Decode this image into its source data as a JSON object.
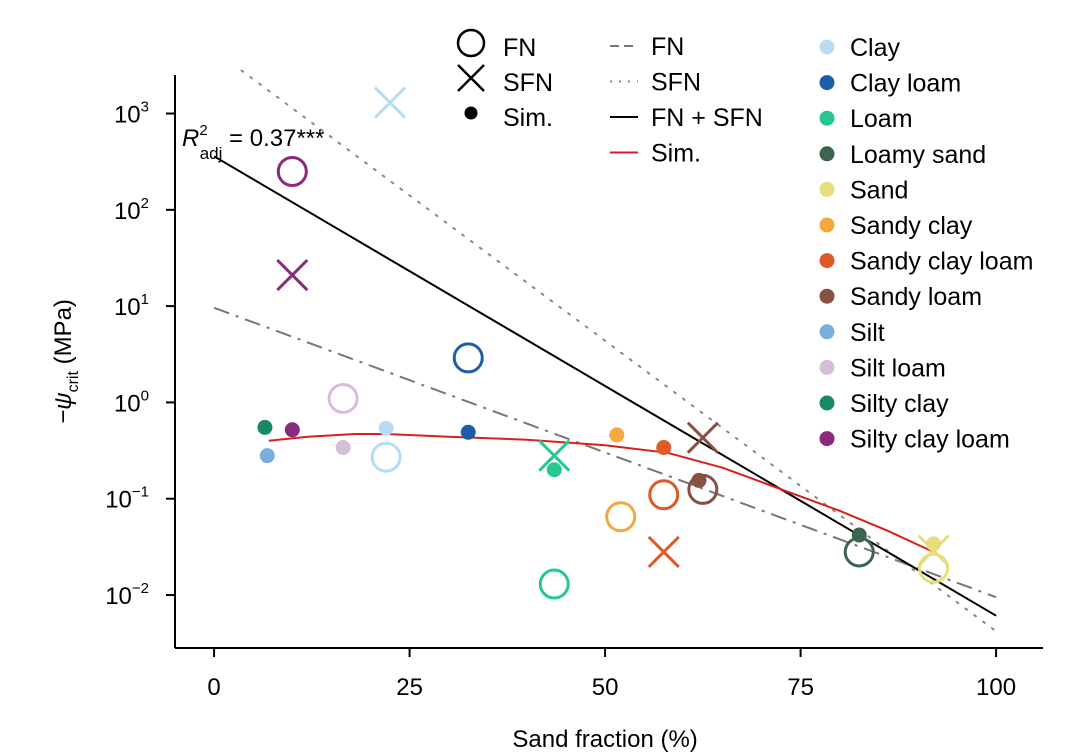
{
  "chart_data": {
    "type": "scatter",
    "xlabel": "Sand fraction (%)",
    "ylabel": {
      "main": "−ψ",
      "sub": "crit",
      "unit": "(MPa)"
    },
    "x": {
      "range": [
        -5,
        106
      ],
      "ticks": [
        0,
        25,
        50,
        75,
        100
      ]
    },
    "y": {
      "scale": "log",
      "range_exponent": [
        -2.55,
        3.4
      ],
      "ticks": [
        {
          "exp": 3,
          "base": "10",
          "sup": "3"
        },
        {
          "exp": 2,
          "base": "10",
          "sup": "2"
        },
        {
          "exp": 1,
          "base": "10",
          "sup": "1"
        },
        {
          "exp": 0,
          "base": "10",
          "sup": "0"
        },
        {
          "exp": -1,
          "base": "10",
          "sup": "−1"
        },
        {
          "exp": -2,
          "base": "10",
          "sup": "−2"
        }
      ]
    },
    "annotation": {
      "base": "R",
      "sup": "2",
      "sub": "adj",
      "rest": " = 0.37***"
    },
    "marker_legend": [
      {
        "marker": "circle",
        "label": "FN"
      },
      {
        "marker": "cross",
        "label": "SFN"
      },
      {
        "marker": "dot",
        "label": "Sim."
      }
    ],
    "line_legend": [
      {
        "style": "dashdot",
        "color": "#777777",
        "label": "FN"
      },
      {
        "style": "dotted",
        "color": "#888888",
        "label": "SFN"
      },
      {
        "style": "solid",
        "color": "#000000",
        "label": "FN + SFN"
      },
      {
        "style": "solid",
        "color": "#d62020",
        "label": "Sim."
      }
    ],
    "classes": [
      {
        "name": "Clay",
        "color": "#b8dcf3"
      },
      {
        "name": "Clay loam",
        "color": "#1c5fa8"
      },
      {
        "name": "Loam",
        "color": "#25c990"
      },
      {
        "name": "Loamy sand",
        "color": "#3d6450"
      },
      {
        "name": "Sand",
        "color": "#e6de79"
      },
      {
        "name": "Sandy clay",
        "color": "#f3a93d"
      },
      {
        "name": "Sandy clay loam",
        "color": "#df5a28"
      },
      {
        "name": "Sandy loam",
        "color": "#875044"
      },
      {
        "name": "Silt",
        "color": "#7aaee0"
      },
      {
        "name": "Silt loam",
        "color": "#d6bedb"
      },
      {
        "name": "Silty clay",
        "color": "#168a63"
      },
      {
        "name": "Silty clay loam",
        "color": "#8a2a7c"
      }
    ],
    "points": {
      "FN": [
        {
          "class": "Silty clay loam",
          "x": 10,
          "y": 250
        },
        {
          "class": "Clay",
          "x": 22,
          "y": 0.27
        },
        {
          "class": "Silt loam",
          "x": 16.5,
          "y": 1.1
        },
        {
          "class": "Clay loam",
          "x": 32.5,
          "y": 2.9
        },
        {
          "class": "Loam",
          "x": 43.5,
          "y": 0.013
        },
        {
          "class": "Sandy clay",
          "x": 52,
          "y": 0.065
        },
        {
          "class": "Sandy clay loam",
          "x": 57.5,
          "y": 0.11
        },
        {
          "class": "Sandy loam",
          "x": 62.5,
          "y": 0.125
        },
        {
          "class": "Loamy sand",
          "x": 82.5,
          "y": 0.028
        },
        {
          "class": "Sand",
          "x": 92,
          "y": 0.019
        }
      ],
      "SFN": [
        {
          "class": "Clay",
          "x": 22.5,
          "y": 1300
        },
        {
          "class": "Silty clay loam",
          "x": 10,
          "y": 21
        },
        {
          "class": "Loam",
          "x": 43.5,
          "y": 0.28
        },
        {
          "class": "Sandy loam",
          "x": 62.5,
          "y": 0.43
        },
        {
          "class": "Sandy clay loam",
          "x": 57.5,
          "y": 0.028
        },
        {
          "class": "Sand",
          "x": 92,
          "y": 0.029
        }
      ],
      "Sim.": [
        {
          "class": "Silty clay",
          "x": 6.5,
          "y": 0.55
        },
        {
          "class": "Silt",
          "x": 6.8,
          "y": 0.28
        },
        {
          "class": "Silty clay loam",
          "x": 10,
          "y": 0.52
        },
        {
          "class": "Silt loam",
          "x": 16.5,
          "y": 0.34
        },
        {
          "class": "Clay",
          "x": 22,
          "y": 0.54
        },
        {
          "class": "Clay loam",
          "x": 32.5,
          "y": 0.49
        },
        {
          "class": "Loam",
          "x": 43.5,
          "y": 0.2
        },
        {
          "class": "Sandy clay",
          "x": 51.5,
          "y": 0.46
        },
        {
          "class": "Sandy clay loam",
          "x": 57.5,
          "y": 0.34
        },
        {
          "class": "Sandy loam",
          "x": 62,
          "y": 0.155
        },
        {
          "class": "Loamy sand",
          "x": 82.5,
          "y": 0.042
        },
        {
          "class": "Sand",
          "x": 92,
          "y": 0.034
        }
      ]
    },
    "lines": {
      "FN": {
        "style": "dashdot",
        "color": "#777777",
        "points": [
          [
            0,
            9.6
          ],
          [
            100,
            0.0095
          ]
        ]
      },
      "SFN": {
        "style": "dotted",
        "color": "#888888",
        "points": [
          [
            3.5,
            2800
          ],
          [
            100,
            0.0042
          ]
        ]
      },
      "FN + SFN": {
        "style": "solid",
        "color": "#000000",
        "points": [
          [
            0,
            360
          ],
          [
            100,
            0.0061
          ]
        ]
      },
      "Sim.": {
        "style": "solid",
        "color": "#d62020",
        "points": [
          [
            7,
            0.4
          ],
          [
            12,
            0.44
          ],
          [
            18,
            0.47
          ],
          [
            22,
            0.47
          ],
          [
            30,
            0.44
          ],
          [
            40,
            0.41
          ],
          [
            50,
            0.36
          ],
          [
            58,
            0.3
          ],
          [
            65,
            0.21
          ],
          [
            72,
            0.13
          ],
          [
            80,
            0.075
          ],
          [
            86,
            0.047
          ],
          [
            92,
            0.028
          ]
        ]
      }
    }
  }
}
